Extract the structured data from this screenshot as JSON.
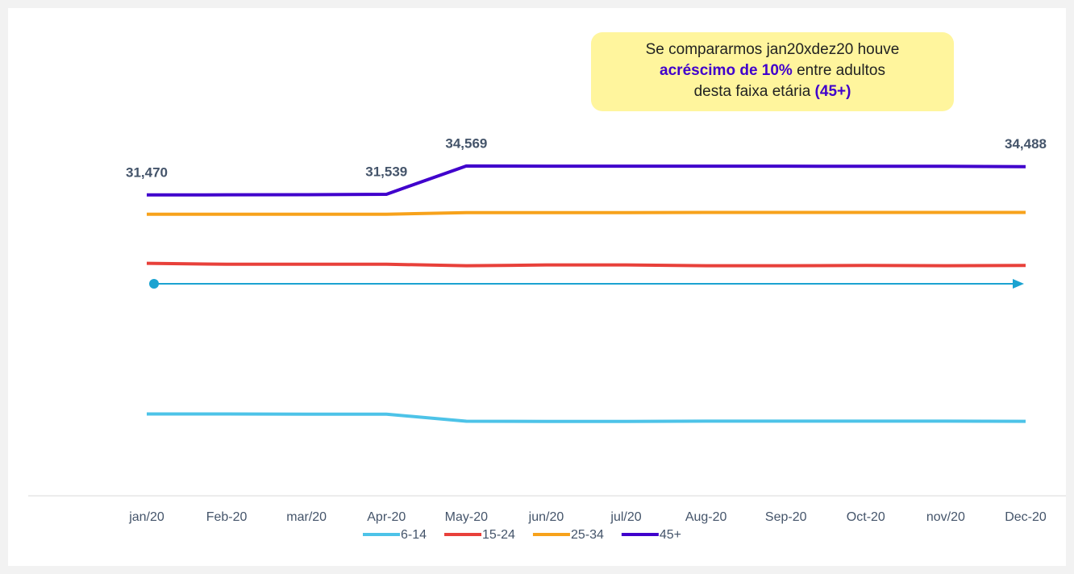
{
  "chart_data": {
    "type": "line",
    "categories": [
      "jan/20",
      "Feb-20",
      "mar/20",
      "Apr-20",
      "May-20",
      "jun/20",
      "jul/20",
      "Aug-20",
      "Sep-20",
      "Oct-20",
      "nov/20",
      "Dec-20"
    ],
    "series": [
      {
        "name": "6-14",
        "color": "#4dc3e8",
        "values": [
          8051,
          8051,
          8030,
          8030,
          7275,
          7250,
          7250,
          7280,
          7280,
          7280,
          7280,
          7260
        ]
      },
      {
        "name": "15-24",
        "color": "#e8403a",
        "values": [
          24152,
          24060,
          24060,
          24060,
          23894,
          23980,
          23980,
          23894,
          23894,
          23930,
          23894,
          23930
        ]
      },
      {
        "name": "25-34",
        "color": "#f7a21b",
        "values": [
          29404,
          29404,
          29404,
          29404,
          29576,
          29576,
          29576,
          29600,
          29600,
          29600,
          29600,
          29600
        ]
      },
      {
        "name": "45+",
        "color": "#4000cc",
        "values": [
          31470,
          31480,
          31490,
          31539,
          34569,
          34540,
          34540,
          34540,
          34540,
          34530,
          34530,
          34488
        ],
        "value_labels": [
          "31,470",
          null,
          null,
          "31,539",
          "34,569",
          null,
          null,
          null,
          null,
          null,
          null,
          "34,488"
        ]
      }
    ],
    "ylim": [
      -700,
      48000
    ],
    "legend": "bottom",
    "annotation": [
      [
        {
          "text": "Se compararmos jan20xdez20 houve",
          "bold": false
        }
      ],
      [
        {
          "text": "acréscimo de 10%",
          "bold": true,
          "color": "#4000cc"
        },
        {
          "text": " entre adultos",
          "bold": false
        }
      ],
      [
        {
          "text": "desta faixa etária ",
          "bold": false
        },
        {
          "text": "(45+)",
          "bold": true,
          "color": "#4000cc"
        }
      ]
    ]
  }
}
